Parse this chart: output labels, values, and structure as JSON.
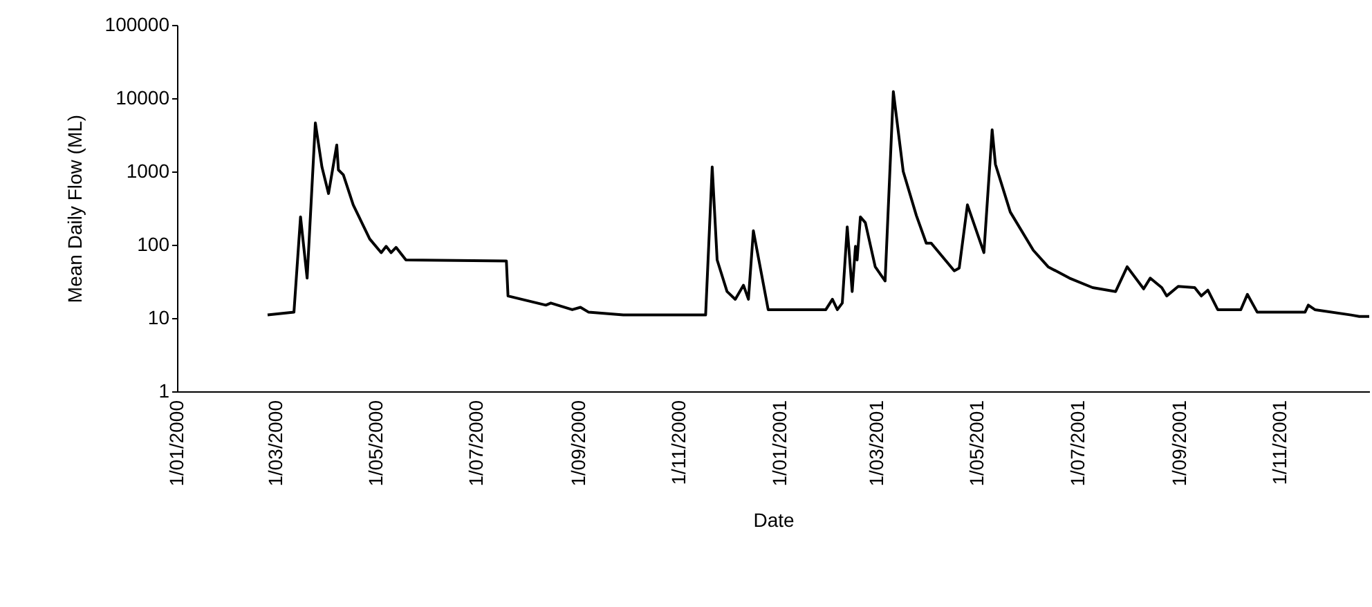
{
  "chart_data": {
    "type": "line",
    "xlabel": "Date",
    "ylabel": "Mean Daily Flow (ML)",
    "log": "y",
    "xlim": [
      "2000-01-01",
      "2001-12-25"
    ],
    "xticks": [
      {
        "value": "2000-01-01",
        "label": "1/01/2000"
      },
      {
        "value": "2000-03-01",
        "label": "1/03/2000"
      },
      {
        "value": "2000-05-01",
        "label": "1/05/2000"
      },
      {
        "value": "2000-07-01",
        "label": "1/07/2000"
      },
      {
        "value": "2000-09-01",
        "label": "1/09/2000"
      },
      {
        "value": "2000-11-01",
        "label": "1/11/2000"
      },
      {
        "value": "2001-01-01",
        "label": "1/01/2001"
      },
      {
        "value": "2001-03-01",
        "label": "1/03/2001"
      },
      {
        "value": "2001-05-01",
        "label": "1/05/2001"
      },
      {
        "value": "2001-07-01",
        "label": "1/07/2001"
      },
      {
        "value": "2001-09-01",
        "label": "1/09/2001"
      },
      {
        "value": "2001-11-01",
        "label": "1/11/2001"
      }
    ],
    "ylim": [
      1,
      100000
    ],
    "yticks": [
      1,
      10,
      100,
      1000,
      10000,
      100000
    ],
    "x": [
      "2000-02-25",
      "2000-03-12",
      "2000-03-16",
      "2000-03-20",
      "2000-03-25",
      "2000-03-29",
      "2000-04-02",
      "2000-04-07",
      "2000-04-08",
      "2000-04-11",
      "2000-04-17",
      "2000-04-27",
      "2000-05-04",
      "2000-05-07",
      "2000-05-10",
      "2000-05-13",
      "2000-05-19",
      "2000-07-19",
      "2000-07-20",
      "2000-08-02",
      "2000-08-12",
      "2000-08-15",
      "2000-08-28",
      "2000-09-02",
      "2000-09-07",
      "2000-09-28",
      "2000-11-17",
      "2000-11-21",
      "2000-11-24",
      "2000-11-30",
      "2000-12-05",
      "2000-12-10",
      "2000-12-13",
      "2000-12-16",
      "2000-12-25",
      "2001-01-29",
      "2001-02-02",
      "2001-02-05",
      "2001-02-08",
      "2001-02-11",
      "2001-02-14",
      "2001-02-16",
      "2001-02-17",
      "2001-02-19",
      "2001-02-22",
      "2001-02-28",
      "2001-03-06",
      "2001-03-11",
      "2001-03-17",
      "2001-03-25",
      "2001-03-31",
      "2001-04-03",
      "2001-04-17",
      "2001-04-20",
      "2001-04-25",
      "2001-05-05",
      "2001-05-10",
      "2001-05-12",
      "2001-05-21",
      "2001-06-04",
      "2001-06-13",
      "2001-06-26",
      "2001-07-10",
      "2001-07-24",
      "2001-07-31",
      "2001-08-10",
      "2001-08-14",
      "2001-08-21",
      "2001-08-24",
      "2001-08-31",
      "2001-09-10",
      "2001-09-14",
      "2001-09-18",
      "2001-09-24",
      "2001-10-08",
      "2001-10-12",
      "2001-10-18",
      "2001-11-16",
      "2001-11-18",
      "2001-11-22",
      "2001-12-14",
      "2001-12-19",
      "2001-12-25"
    ],
    "series": [
      {
        "color": "#000000",
        "values": [
          11,
          12,
          240,
          35,
          4600,
          1150,
          500,
          2300,
          1050,
          900,
          350,
          120,
          78,
          95,
          78,
          92,
          62,
          60,
          20,
          17,
          15,
          16,
          13,
          14,
          12,
          11,
          11,
          1150,
          62,
          23,
          18,
          28,
          18,
          155,
          13,
          13,
          18,
          13,
          16,
          175,
          23,
          95,
          62,
          240,
          200,
          50,
          32,
          12300,
          1000,
          250,
          105,
          105,
          44,
          48,
          350,
          78,
          3700,
          1250,
          280,
          84,
          50,
          35,
          26,
          23,
          50,
          25,
          35,
          26,
          20,
          27,
          26,
          20,
          24,
          13,
          13,
          21,
          12,
          12,
          15,
          13,
          11,
          10.5,
          10.5
        ]
      }
    ]
  }
}
